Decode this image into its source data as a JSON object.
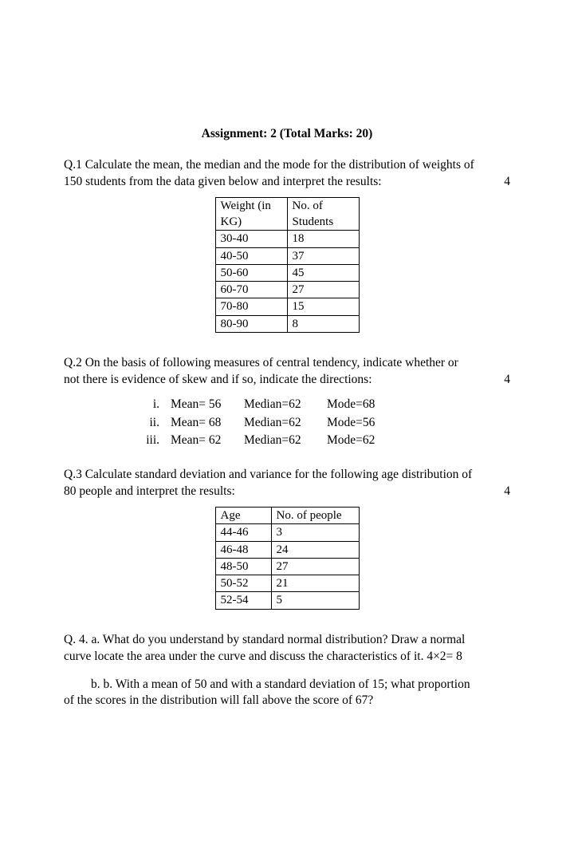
{
  "title": "Assignment: 2 (Total Marks: 20)",
  "q1": {
    "text_a": "Q.1 Calculate the mean, the median and the mode for the distribution of weights of",
    "text_b": "150 students from the data given below and interpret the results:",
    "marks": "4",
    "table": {
      "header": [
        "Weight (in KG)",
        "No. of Students"
      ],
      "rows": [
        [
          "30-40",
          "18"
        ],
        [
          "40-50",
          "37"
        ],
        [
          "50-60",
          "45"
        ],
        [
          "60-70",
          "27"
        ],
        [
          "70-80",
          "15"
        ],
        [
          "80-90",
          "8"
        ]
      ]
    }
  },
  "q2": {
    "text_a": "Q.2 On the basis of following measures of central tendency, indicate whether or",
    "text_b": "not there is evidence of skew and if so, indicate the directions:",
    "marks": "4",
    "items": [
      {
        "num": "i.",
        "mean": "Mean= 56",
        "median": "Median=62",
        "mode": "Mode=68"
      },
      {
        "num": "ii.",
        "mean": "Mean= 68",
        "median": "Median=62",
        "mode": "Mode=56"
      },
      {
        "num": "iii.",
        "mean": "Mean= 62",
        "median": "Median=62",
        "mode": "Mode=62"
      }
    ]
  },
  "q3": {
    "text_a": "Q.3  Calculate standard deviation and variance for the following age distribution of",
    "text_b": "80 people and interpret the results:",
    "marks": "4",
    "table": {
      "header": [
        "Age",
        "No. of people"
      ],
      "rows": [
        [
          "44-46",
          "3"
        ],
        [
          "46-48",
          "24"
        ],
        [
          "48-50",
          "27"
        ],
        [
          "50-52",
          "21"
        ],
        [
          "52-54",
          "5"
        ]
      ]
    }
  },
  "q4": {
    "a_line1": "Q. 4. a. What do you understand by standard normal distribution? Draw a normal",
    "a_line2": "curve locate the area under the curve and discuss the characteristics of it.   4×2= 8",
    "b_line1": "b. b. With a mean of 50 and with a standard deviation of 15; what proportion",
    "b_line2": "of the scores in the distribution will fall above the score of 67?"
  }
}
